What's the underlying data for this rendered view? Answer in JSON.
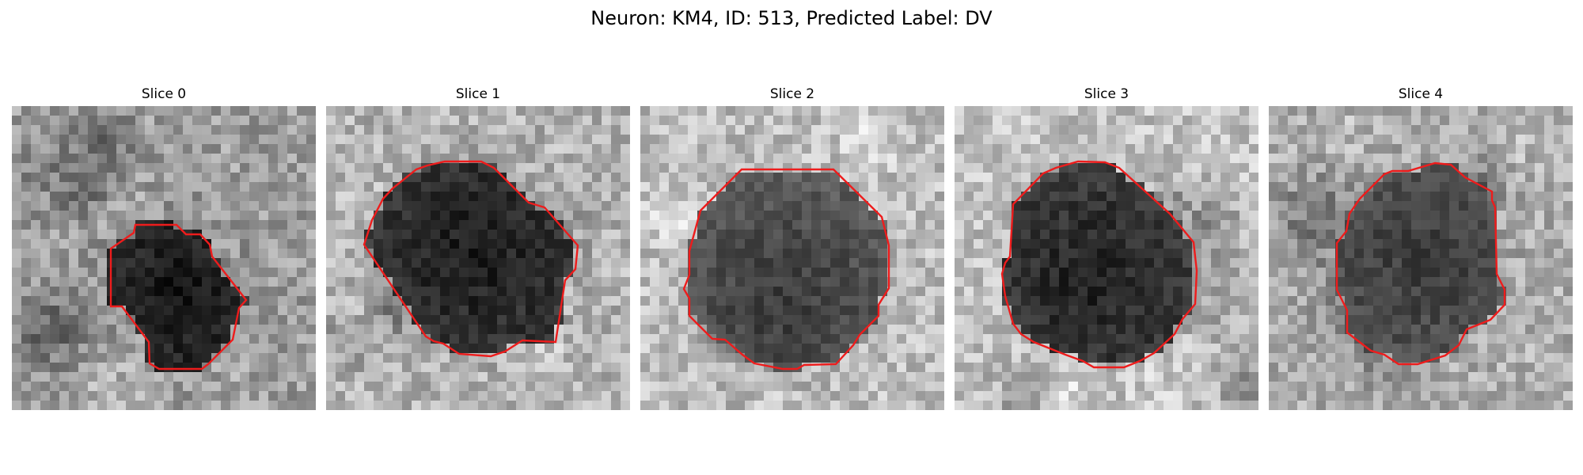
{
  "figure": {
    "title": "Neuron: KM4, ID: 513, Predicted Label: DV"
  },
  "colors": {
    "contour": "#ee1c1c",
    "background": "#ffffff"
  },
  "panels": [
    {
      "title": "Slice 0",
      "seed": 11,
      "dark_level": 0.08,
      "bg_level": 0.62
    },
    {
      "title": "Slice 1",
      "seed": 23,
      "dark_level": 0.1,
      "bg_level": 0.7
    },
    {
      "title": "Slice 2",
      "seed": 37,
      "dark_level": 0.22,
      "bg_level": 0.74
    },
    {
      "title": "Slice 3",
      "seed": 41,
      "dark_level": 0.12,
      "bg_level": 0.76
    },
    {
      "title": "Slice 4",
      "seed": 53,
      "dark_level": 0.22,
      "bg_level": 0.68
    }
  ]
}
